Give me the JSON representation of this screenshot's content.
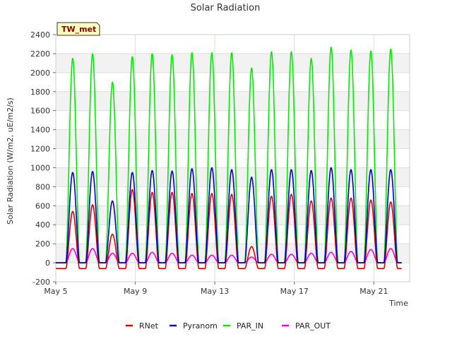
{
  "chart_data": {
    "type": "line",
    "title": "Solar Radiation",
    "xlabel": "Time",
    "ylabel": "Solar Radiation (W/m2, uE/m2/s)",
    "tag": "TW_met",
    "ylim": [
      -200,
      2400
    ],
    "yticks": [
      -200,
      0,
      200,
      400,
      600,
      800,
      1000,
      1200,
      1400,
      1600,
      1800,
      2000,
      2200,
      2400
    ],
    "xlim": [
      5.0,
      22.8
    ],
    "xticks": [
      {
        "value": 5,
        "label": "May 5"
      },
      {
        "value": 9,
        "label": "May 9"
      },
      {
        "value": 13,
        "label": "May 13"
      },
      {
        "value": 17,
        "label": "May 17"
      },
      {
        "value": 21,
        "label": "May 21"
      }
    ],
    "x_unit": "day of May",
    "grid": true,
    "legend_position": "bottom",
    "series": [
      {
        "name": "RNet",
        "color": "#dd0000",
        "night_value": -60,
        "day_peaks": [
          540,
          610,
          300,
          770,
          740,
          740,
          730,
          730,
          720,
          170,
          700,
          720,
          650,
          680,
          680,
          660,
          640
        ]
      },
      {
        "name": "Pyranom",
        "color": "#0000cc",
        "night_value": 0,
        "day_peaks": [
          950,
          960,
          650,
          950,
          970,
          965,
          990,
          1000,
          980,
          900,
          980,
          980,
          970,
          1000,
          980,
          980,
          980
        ]
      },
      {
        "name": "PAR_IN",
        "color": "#00ee00",
        "night_value": 0,
        "day_peaks": [
          2150,
          2200,
          1900,
          2170,
          2200,
          2190,
          2210,
          2210,
          2210,
          2050,
          2220,
          2220,
          2150,
          2270,
          2240,
          2230,
          2250
        ]
      },
      {
        "name": "PAR_OUT",
        "color": "#ee00ee",
        "night_value": 0,
        "day_peaks": [
          150,
          150,
          100,
          100,
          110,
          100,
          80,
          80,
          80,
          60,
          90,
          90,
          100,
          110,
          120,
          140,
          150
        ]
      }
    ],
    "day_centers": [
      5.85,
      6.85,
      7.85,
      8.85,
      9.85,
      10.85,
      11.85,
      12.85,
      13.85,
      14.85,
      15.85,
      16.85,
      17.85,
      18.85,
      19.85,
      20.85,
      21.85
    ]
  }
}
